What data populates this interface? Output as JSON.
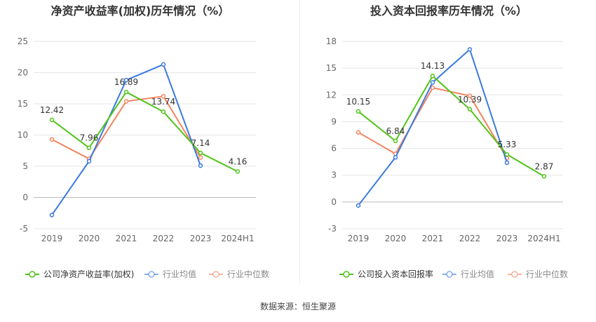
{
  "footer": {
    "source_label": "数据来源：恒生聚源"
  },
  "colors": {
    "company": "#52c41a",
    "avg": "#3b7ae0",
    "median": "#f4845f",
    "grid": "#e6e6e6",
    "axis_text": "#666666"
  },
  "chart_data": [
    {
      "type": "line",
      "title": "净资产收益率(加权)历年情况（%）",
      "categories": [
        "2019",
        "2020",
        "2021",
        "2022",
        "2023",
        "2024H1"
      ],
      "ylim": [
        -5,
        25
      ],
      "yticks": [
        -5,
        0,
        5,
        10,
        15,
        20,
        25
      ],
      "grid": true,
      "legend_position": "bottom-left",
      "series": [
        {
          "name": "公司净资产收益率(加权)",
          "key": "company",
          "values": [
            12.42,
            7.96,
            16.89,
            13.74,
            7.14,
            4.16
          ],
          "labels": [
            "12.42",
            "7.96",
            "16.89",
            "13.74",
            "7.14",
            "4.16"
          ]
        },
        {
          "name": "行业均值",
          "key": "avg",
          "values": [
            -2.8,
            5.8,
            18.8,
            21.3,
            5.1,
            null
          ]
        },
        {
          "name": "行业中位数",
          "key": "median",
          "values": [
            9.3,
            6.2,
            15.4,
            16.2,
            6.4,
            null
          ]
        }
      ]
    },
    {
      "type": "line",
      "title": "投入资本回报率历年情况（%）",
      "categories": [
        "2019",
        "2020",
        "2021",
        "2022",
        "2023",
        "2024H1"
      ],
      "ylim": [
        -3,
        18
      ],
      "yticks": [
        -3,
        0,
        3,
        6,
        9,
        12,
        15,
        18
      ],
      "grid": true,
      "legend_position": "bottom-left",
      "series": [
        {
          "name": "公司投入资本回报率",
          "key": "company",
          "values": [
            10.15,
            6.84,
            14.13,
            10.39,
            5.33,
            2.87
          ],
          "labels": [
            "10.15",
            "6.84",
            "14.13",
            "10.39",
            "5.33",
            "2.87"
          ]
        },
        {
          "name": "行业均值",
          "key": "avg",
          "values": [
            -0.4,
            5.0,
            13.4,
            17.1,
            4.4,
            null
          ]
        },
        {
          "name": "行业中位数",
          "key": "median",
          "values": [
            7.8,
            5.4,
            12.8,
            11.9,
            4.9,
            null
          ]
        }
      ]
    }
  ]
}
